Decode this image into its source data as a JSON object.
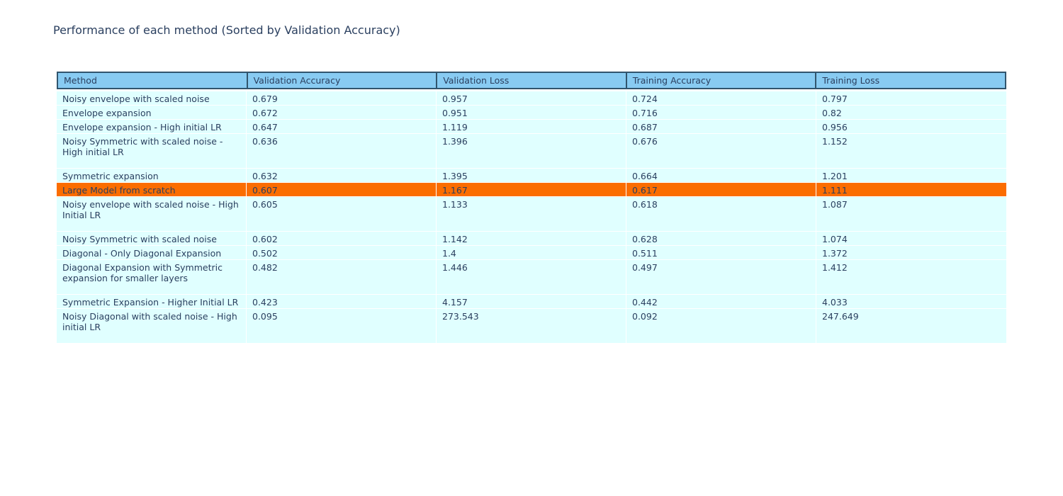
{
  "title": "Performance of each method (Sorted by Validation Accuracy)",
  "colors": {
    "text": "#2a3f5f",
    "header_bg": "#88cbf2",
    "header_border": "#31556e",
    "row_bg": "#e0ffff",
    "highlight_bg": "#fb6d00",
    "page_bg": "#ffffff"
  },
  "table": {
    "columns": [
      "Method",
      "Validation Accuracy",
      "Validation Loss",
      "Training Accuracy",
      "Training Loss"
    ],
    "rows": [
      {
        "method": "Noisy envelope with scaled noise",
        "validation_accuracy": "0.679",
        "validation_loss": "0.957",
        "training_accuracy": "0.724",
        "training_loss": "0.797",
        "highlighted": false
      },
      {
        "method": "Envelope expansion",
        "validation_accuracy": "0.672",
        "validation_loss": "0.951",
        "training_accuracy": "0.716",
        "training_loss": "0.82",
        "highlighted": false
      },
      {
        "method": "Envelope expansion - High initial LR",
        "validation_accuracy": "0.647",
        "validation_loss": "1.119",
        "training_accuracy": "0.687",
        "training_loss": "0.956",
        "highlighted": false
      },
      {
        "method": "Noisy Symmetric with scaled noise - High initial LR",
        "validation_accuracy": "0.636",
        "validation_loss": "1.396",
        "training_accuracy": "0.676",
        "training_loss": "1.152",
        "highlighted": false
      },
      {
        "method": "Symmetric expansion",
        "validation_accuracy": "0.632",
        "validation_loss": "1.395",
        "training_accuracy": "0.664",
        "training_loss": "1.201",
        "highlighted": false
      },
      {
        "method": "Large Model from scratch",
        "validation_accuracy": "0.607",
        "validation_loss": "1.167",
        "training_accuracy": "0.617",
        "training_loss": "1.111",
        "highlighted": true
      },
      {
        "method": "Noisy envelope with scaled noise - High Initial LR",
        "validation_accuracy": "0.605",
        "validation_loss": "1.133",
        "training_accuracy": "0.618",
        "training_loss": "1.087",
        "highlighted": false
      },
      {
        "method": "Noisy Symmetric with scaled noise",
        "validation_accuracy": "0.602",
        "validation_loss": "1.142",
        "training_accuracy": "0.628",
        "training_loss": "1.074",
        "highlighted": false
      },
      {
        "method": "Diagonal - Only Diagonal Expansion",
        "validation_accuracy": "0.502",
        "validation_loss": "1.4",
        "training_accuracy": "0.511",
        "training_loss": "1.372",
        "highlighted": false
      },
      {
        "method": "Diagonal Expansion with Symmetric expansion for smaller layers",
        "validation_accuracy": "0.482",
        "validation_loss": "1.446",
        "training_accuracy": "0.497",
        "training_loss": "1.412",
        "highlighted": false
      },
      {
        "method": "Symmetric Expansion - Higher Initial LR",
        "validation_accuracy": "0.423",
        "validation_loss": "4.157",
        "training_accuracy": "0.442",
        "training_loss": "4.033",
        "highlighted": false
      },
      {
        "method": "Noisy Diagonal with scaled noise - High initial LR",
        "validation_accuracy": "0.095",
        "validation_loss": "273.543",
        "training_accuracy": "0.092",
        "training_loss": "247.649",
        "highlighted": false
      }
    ]
  }
}
